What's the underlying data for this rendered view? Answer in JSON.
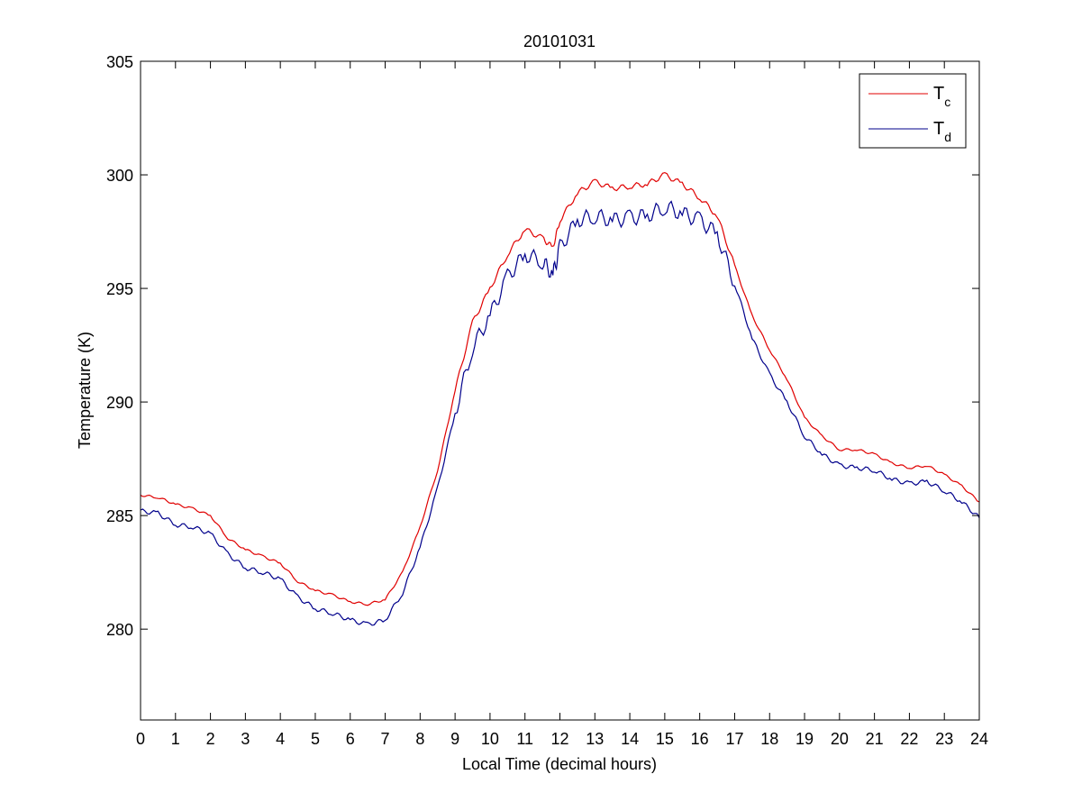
{
  "chart_data": {
    "type": "line",
    "title": "20101031",
    "xlabel": "Local Time (decimal hours)",
    "ylabel": "Temperature (K)",
    "xlim": [
      0,
      24
    ],
    "ylim": [
      276,
      305
    ],
    "x_ticks": [
      0,
      1,
      2,
      3,
      4,
      5,
      6,
      7,
      8,
      9,
      10,
      11,
      12,
      13,
      14,
      15,
      16,
      17,
      18,
      19,
      20,
      21,
      22,
      23,
      24
    ],
    "y_ticks": [
      280,
      285,
      290,
      295,
      300,
      305
    ],
    "grid": false,
    "legend_position": "top-right",
    "series": [
      {
        "name": "T_c",
        "legend_main": "T",
        "legend_sub": "c",
        "color": "#e00000",
        "x": [
          0,
          0.5,
          1,
          1.5,
          2,
          2.5,
          3,
          3.5,
          4,
          4.5,
          5,
          5.5,
          6,
          6.5,
          7,
          7.5,
          8,
          8.5,
          9,
          9.5,
          10,
          10.5,
          11,
          11.5,
          11.8,
          12,
          12.5,
          13,
          13.5,
          14,
          14.5,
          15,
          15.5,
          16,
          16.5,
          17,
          17.5,
          18,
          18.5,
          19,
          19.5,
          20,
          20.5,
          21,
          21.5,
          22,
          22.5,
          23,
          23.5,
          24
        ],
        "values": [
          285.9,
          285.8,
          285.5,
          285.3,
          285.0,
          284.0,
          283.5,
          283.2,
          282.9,
          282.1,
          281.7,
          281.5,
          281.2,
          281.1,
          281.3,
          282.5,
          284.5,
          287.0,
          290.5,
          293.5,
          295.0,
          296.5,
          297.6,
          297.2,
          296.8,
          298.0,
          299.2,
          299.7,
          299.4,
          299.5,
          299.6,
          300.0,
          299.6,
          299.0,
          298.2,
          296.0,
          293.8,
          292.3,
          291.0,
          289.3,
          288.5,
          287.9,
          287.9,
          287.7,
          287.3,
          287.1,
          287.2,
          286.8,
          286.3,
          285.6
        ]
      },
      {
        "name": "T_d",
        "legend_main": "T",
        "legend_sub": "d",
        "color": "#00008b",
        "x": [
          0,
          0.5,
          1,
          1.5,
          2,
          2.5,
          3,
          3.5,
          4,
          4.5,
          5,
          5.5,
          6,
          6.5,
          7,
          7.5,
          8,
          8.5,
          9,
          9.5,
          10,
          10.5,
          11,
          11.5,
          11.8,
          12,
          12.5,
          13,
          13.5,
          14,
          14.5,
          15,
          15.5,
          16,
          16.5,
          17,
          17.5,
          18,
          18.5,
          19,
          19.5,
          20,
          20.5,
          21,
          21.5,
          22,
          22.5,
          23,
          23.5,
          24
        ],
        "values": [
          285.2,
          285.1,
          284.6,
          284.5,
          284.2,
          283.3,
          282.7,
          282.5,
          282.2,
          281.4,
          280.9,
          280.7,
          280.4,
          280.2,
          280.4,
          281.6,
          283.6,
          286.2,
          289.5,
          292.4,
          293.8,
          295.5,
          296.5,
          296.2,
          295.6,
          296.8,
          298.0,
          298.2,
          298.0,
          298.1,
          298.2,
          298.6,
          298.3,
          298.0,
          297.4,
          295.2,
          292.8,
          291.2,
          290.0,
          288.5,
          287.7,
          287.2,
          287.1,
          287.0,
          286.6,
          286.4,
          286.5,
          286.1,
          285.6,
          284.9
        ]
      }
    ]
  }
}
